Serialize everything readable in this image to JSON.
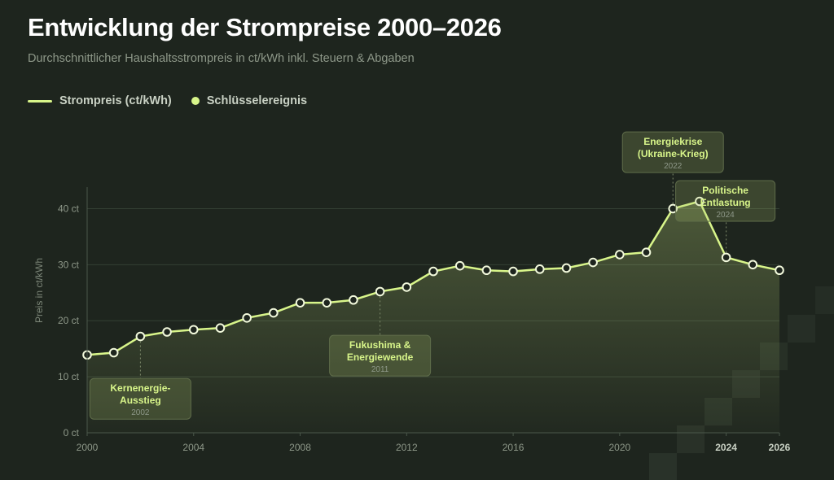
{
  "title": "Entwicklung der Strompreise 2000–2026",
  "subtitle": "Durchschnittlicher Haushaltsstrompreis in ct/kWh inkl. Steuern & Abgaben",
  "legend": {
    "line_label": "Strompreis (ct/kWh)",
    "dot_label": "Schlüsselereignis"
  },
  "colors": {
    "accent": "#d8f58a",
    "background": "#1e251e"
  },
  "chart_data": {
    "type": "line",
    "title": "Entwicklung der Strompreise 2000–2026",
    "xlabel": "",
    "ylabel": "Preis in ct/kWh",
    "xlim": [
      2000,
      2026
    ],
    "ylim": [
      0,
      45
    ],
    "x": [
      2000,
      2001,
      2002,
      2003,
      2004,
      2005,
      2006,
      2007,
      2008,
      2009,
      2010,
      2011,
      2012,
      2013,
      2014,
      2015,
      2016,
      2017,
      2018,
      2019,
      2020,
      2021,
      2022,
      2023,
      2024,
      2025,
      2026
    ],
    "series": [
      {
        "name": "Strompreis (ct/kWh)",
        "values": [
          13.9,
          14.3,
          17.2,
          18.0,
          18.4,
          18.7,
          20.5,
          21.4,
          23.2,
          23.2,
          23.7,
          25.2,
          26.0,
          28.8,
          29.8,
          29.0,
          28.8,
          29.2,
          29.4,
          30.4,
          31.8,
          32.2,
          40.0,
          41.3,
          31.3,
          30.0,
          29.0
        ]
      }
    ],
    "yticks": [
      {
        "value": 0,
        "label": "0 ct"
      },
      {
        "value": 10,
        "label": "10 ct"
      },
      {
        "value": 20,
        "label": "20 ct"
      },
      {
        "value": 30,
        "label": "30 ct"
      },
      {
        "value": 40,
        "label": "40 ct"
      }
    ],
    "xticks": [
      {
        "value": 2000,
        "label": "2000"
      },
      {
        "value": 2004,
        "label": "2004"
      },
      {
        "value": 2008,
        "label": "2008"
      },
      {
        "value": 2012,
        "label": "2012"
      },
      {
        "value": 2016,
        "label": "2016"
      },
      {
        "value": 2020,
        "label": "2020"
      },
      {
        "value": 2024,
        "label": "2024",
        "bold": true
      },
      {
        "value": 2026,
        "label": "2026",
        "bold": true
      }
    ],
    "annotations": [
      {
        "year": 2002,
        "lines": [
          "Kernenergie-",
          "Ausstieg"
        ],
        "year_label": "2002",
        "label_value": 6.5
      },
      {
        "year": 2011,
        "lines": [
          "Fukushima &",
          "Energiewende"
        ],
        "year_label": "2011",
        "label_value": 14.2
      },
      {
        "year": 2022,
        "lines": [
          "Energiekrise",
          "(Ukraine-Krieg)"
        ],
        "year_label": "2022",
        "label_value": 50.5
      },
      {
        "year": 2024,
        "lines": [
          "Politische",
          "Entlastung"
        ],
        "year_label": "2024",
        "label_value": 41.8
      }
    ]
  }
}
